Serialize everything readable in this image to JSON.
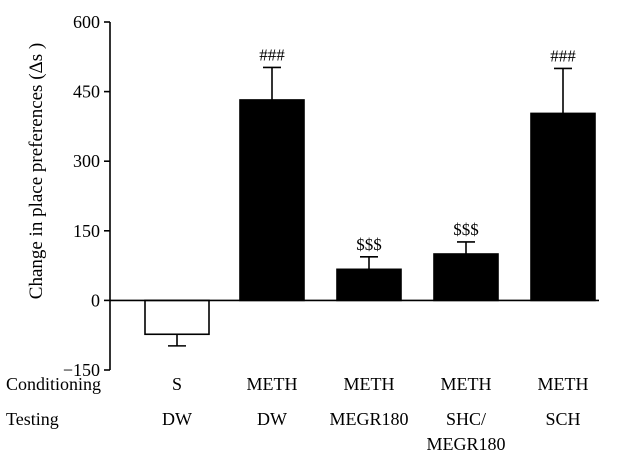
{
  "chart_data": {
    "type": "bar",
    "ylabel": "Change in place preferences (Δs )",
    "ylim": [
      -150,
      600
    ],
    "yticks": [
      -150,
      0,
      150,
      300,
      450,
      600
    ],
    "grid": false,
    "row_labels": [
      "Conditioning",
      "Testing"
    ],
    "categories": [
      {
        "conditioning": "S",
        "testing": [
          "DW"
        ]
      },
      {
        "conditioning": "METH",
        "testing": [
          "DW"
        ]
      },
      {
        "conditioning": "METH",
        "testing": [
          "MEGR180"
        ]
      },
      {
        "conditioning": "METH",
        "testing": [
          "SHC/",
          "MEGR180"
        ]
      },
      {
        "conditioning": "METH",
        "testing": [
          "SCH"
        ]
      }
    ],
    "series": [
      {
        "values": [
          -73,
          432,
          67,
          100,
          403
        ],
        "errors": [
          25,
          70,
          27,
          26,
          97
        ],
        "fills": [
          "#ffffff",
          "#000000",
          "#000000",
          "#000000",
          "#000000"
        ],
        "annotations": [
          "",
          "###",
          "$$$",
          "$$$",
          "###"
        ]
      }
    ]
  }
}
